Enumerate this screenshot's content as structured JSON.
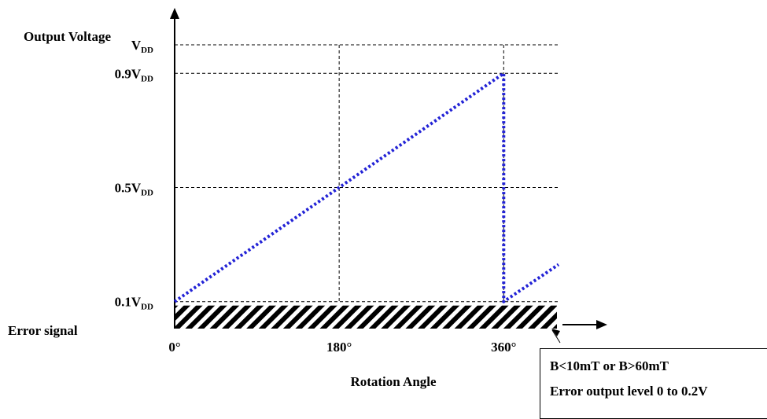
{
  "chart_data": {
    "type": "line",
    "title": "",
    "ylabel": "Output Voltage",
    "xlabel": "Rotation Angle",
    "x_ticks": [
      {
        "value": 0,
        "label": "0°"
      },
      {
        "value": 180,
        "label": "180°"
      },
      {
        "value": 360,
        "label": "360°"
      }
    ],
    "y_ticks": [
      {
        "value": 1.0,
        "main": "V",
        "sub": "DD"
      },
      {
        "value": 0.9,
        "main": "0.9V",
        "sub": "DD"
      },
      {
        "value": 0.5,
        "main": "0.5V",
        "sub": "DD"
      },
      {
        "value": 0.1,
        "main": "0.1V",
        "sub": "DD"
      }
    ],
    "xlim": [
      0,
      420
    ],
    "ylim": [
      0,
      1.0
    ],
    "series": [
      {
        "x": [
          0,
          360,
          360,
          420
        ],
        "y": [
          0.1,
          0.9,
          0.1,
          0.23
        ]
      }
    ],
    "error_band": {
      "label": "Error signal",
      "ylim": [
        0,
        0.2
      ]
    },
    "colors": {
      "series": "#2323d6",
      "axes": "#000000"
    }
  },
  "callout": {
    "line1": "B<10mT or B>60mT",
    "line2": "Error output level 0 to 0.2V"
  }
}
